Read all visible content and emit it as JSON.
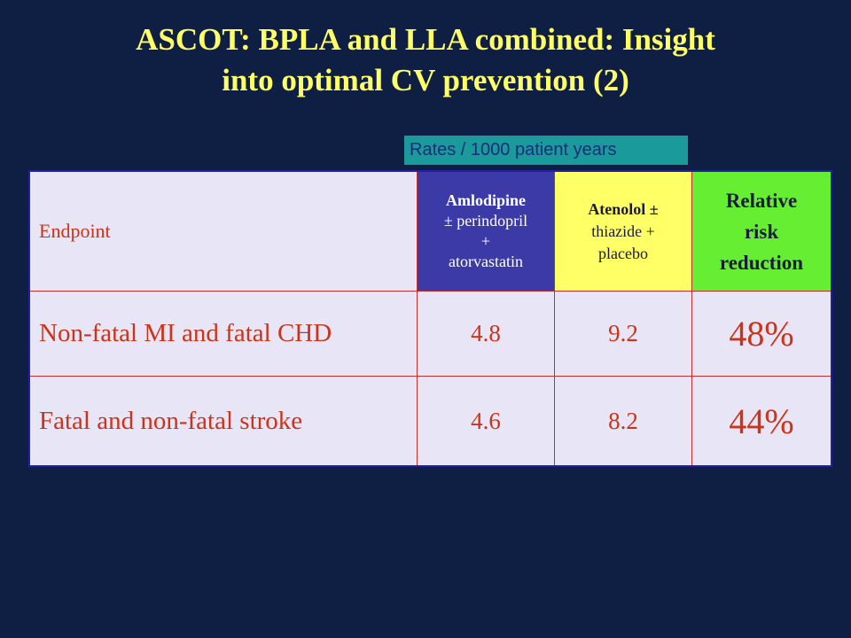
{
  "title": {
    "line1": "ASCOT: BPLA and LLA combined: Insight",
    "line2": "into optimal CV prevention (2)"
  },
  "rates_label": "Rates / 1000 patient years",
  "table": {
    "headers": {
      "endpoint": "Endpoint",
      "amlodipine_line1": "Amlodipine",
      "amlodipine_line2": "± perindopril",
      "amlodipine_line3": "+",
      "amlodipine_line4": "atorvastatin",
      "atenolol_line1": "Atenolol ±",
      "atenolol_line2": "thiazide +",
      "atenolol_line3": "placebo",
      "rrr_line1": "Relative",
      "rrr_line2": "risk",
      "rrr_line3": "reduction"
    },
    "rows": [
      {
        "endpoint": "Non-fatal MI and fatal CHD",
        "amlodipine": "4.8",
        "atenolol": "9.2",
        "rrr": "48%"
      },
      {
        "endpoint": "Fatal and non-fatal stroke",
        "amlodipine": "4.6",
        "atenolol": "8.2",
        "rrr": "44%"
      }
    ]
  },
  "colors": {
    "background": "#0f1f44",
    "title": "#ffff66",
    "amlodipine_header": "#3b3aa6",
    "atenolol_header": "#ffff66",
    "rrr_header": "#66ee33",
    "text_red": "#cc3318"
  }
}
